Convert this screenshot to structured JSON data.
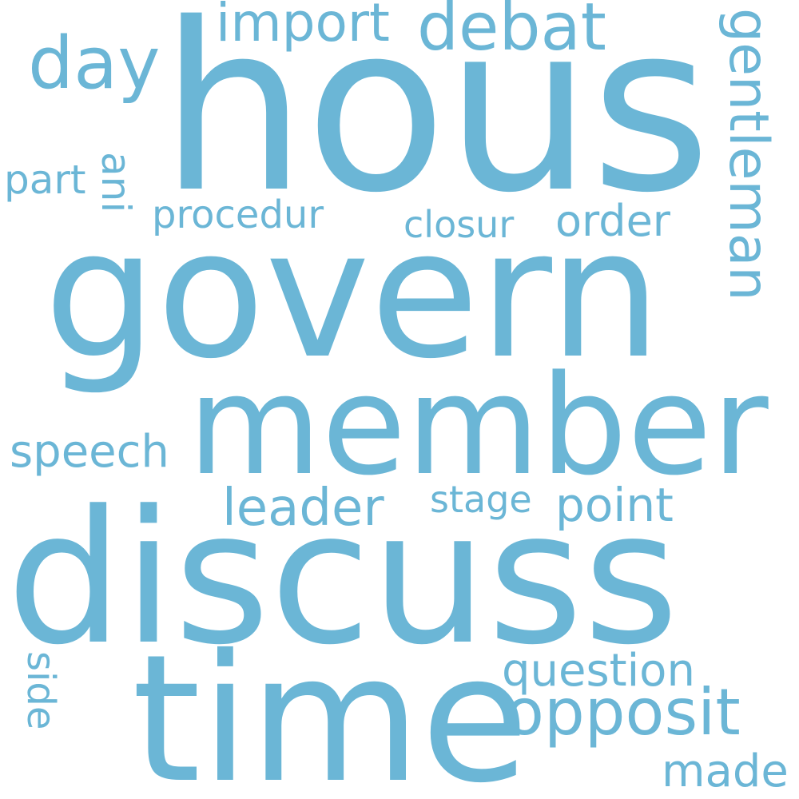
{
  "word_color": "#6bb6d6",
  "background_color": "#ffffff",
  "words": [
    {
      "text": "hous",
      "orientation": "horizontal"
    },
    {
      "text": "govern",
      "orientation": "horizontal"
    },
    {
      "text": "member",
      "orientation": "horizontal"
    },
    {
      "text": "discuss",
      "orientation": "horizontal"
    },
    {
      "text": "time",
      "orientation": "horizontal"
    },
    {
      "text": "opposit",
      "orientation": "horizontal"
    },
    {
      "text": "gentleman",
      "orientation": "vertical"
    },
    {
      "text": "debat",
      "orientation": "horizontal"
    },
    {
      "text": "import",
      "orientation": "horizontal"
    },
    {
      "text": "day",
      "orientation": "horizontal"
    },
    {
      "text": "part",
      "orientation": "horizontal"
    },
    {
      "text": "ani",
      "orientation": "vertical"
    },
    {
      "text": "procedur",
      "orientation": "horizontal"
    },
    {
      "text": "closur",
      "orientation": "horizontal"
    },
    {
      "text": "order",
      "orientation": "horizontal"
    },
    {
      "text": "speech",
      "orientation": "horizontal"
    },
    {
      "text": "leader",
      "orientation": "horizontal"
    },
    {
      "text": "stage",
      "orientation": "horizontal"
    },
    {
      "text": "point",
      "orientation": "horizontal"
    },
    {
      "text": "question",
      "orientation": "horizontal"
    },
    {
      "text": "side",
      "orientation": "vertical"
    },
    {
      "text": "made",
      "orientation": "horizontal"
    }
  ]
}
